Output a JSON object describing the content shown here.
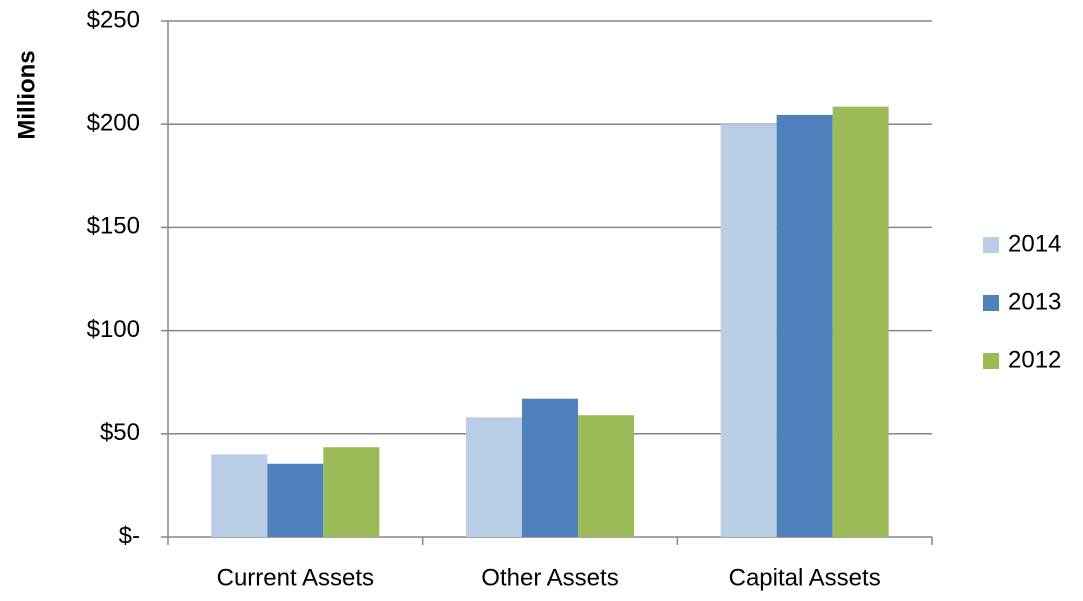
{
  "chart_data": {
    "type": "bar",
    "y_label": "Millions",
    "categories": [
      "Current Assets",
      "Other Assets",
      "Capital Assets"
    ],
    "series": [
      {
        "name": "2014",
        "color": "#b9cde5",
        "values": [
          40,
          58,
          200
        ]
      },
      {
        "name": "2013",
        "color": "#4f81bd",
        "values": [
          35.5,
          67,
          204.5
        ]
      },
      {
        "name": "2012",
        "color": "#9bbb59",
        "values": [
          43.5,
          59,
          208.5
        ]
      }
    ],
    "ylim": [
      0,
      250
    ],
    "yticks": [
      {
        "value": 0,
        "label": "$-"
      },
      {
        "value": 50,
        "label": "$50"
      },
      {
        "value": 100,
        "label": "$100"
      },
      {
        "value": 150,
        "label": "$150"
      },
      {
        "value": 200,
        "label": "$200"
      },
      {
        "value": 250,
        "label": "$250"
      }
    ],
    "grid": true,
    "legend": "right"
  }
}
